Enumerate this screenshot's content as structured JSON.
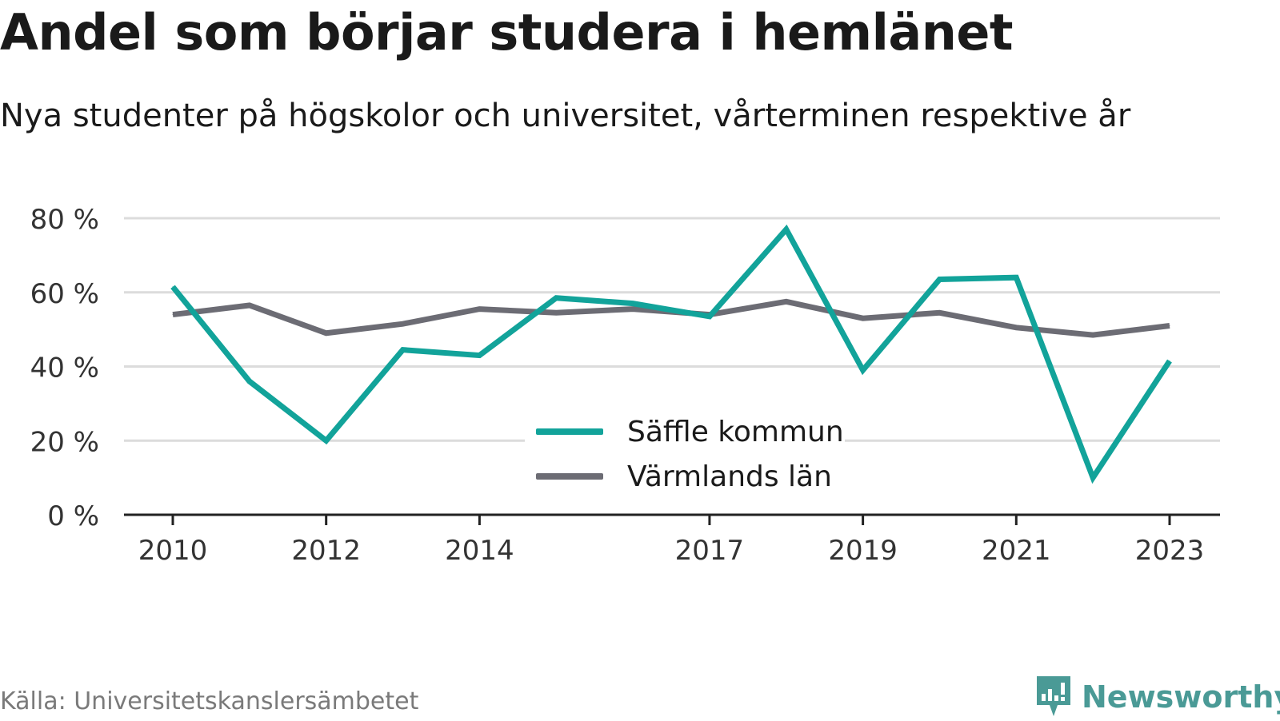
{
  "header": {
    "title": "Andel som börjar studera i hemlänet",
    "subtitle": "Nya studenter på högskolor och universitet, vårterminen respektive år"
  },
  "footer": {
    "source": "Källa: Universitetskanslersämbetet",
    "brand": "Newsworthy",
    "brand_icon": "newsworthy-logo-icon",
    "brand_color": "#4a9a96"
  },
  "chart_data": {
    "type": "line",
    "x": [
      2010,
      2011,
      2012,
      2013,
      2014,
      2015,
      2016,
      2017,
      2018,
      2019,
      2020,
      2021,
      2022,
      2023
    ],
    "x_tick_labels": [
      "2010",
      "2012",
      "2014",
      "2017",
      "2019",
      "2021",
      "2023"
    ],
    "x_tick_values": [
      2010,
      2012,
      2014,
      2017,
      2019,
      2021,
      2023
    ],
    "y_tick_labels": [
      "0 %",
      "20 %",
      "40 %",
      "60 %",
      "80 %"
    ],
    "y_tick_values": [
      0,
      20,
      40,
      60,
      80
    ],
    "ylim": [
      0,
      80
    ],
    "grid": true,
    "legend_position": "center",
    "series": [
      {
        "name": "Säffle kommun",
        "color": "#12a39a",
        "values": [
          61.5,
          36,
          20,
          44.5,
          43,
          58.5,
          57,
          53.5,
          77,
          39,
          63.5,
          64,
          10,
          41.5
        ]
      },
      {
        "name": "Värmlands län",
        "color": "#6c6c74",
        "values": [
          54,
          56.5,
          49,
          51.5,
          55.5,
          54.5,
          55.5,
          54,
          57.5,
          53,
          54.5,
          50.5,
          48.5,
          51
        ]
      }
    ]
  }
}
